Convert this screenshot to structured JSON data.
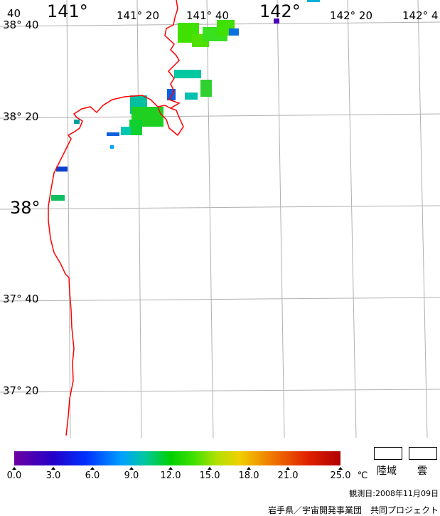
{
  "map": {
    "lon_labels": [
      "141°",
      "141° 20",
      "141° 40",
      "142°",
      "142° 20",
      "142° 4"
    ],
    "lat_labels": [
      "38° 40",
      "38° 20",
      "38°",
      "37° 40",
      "37° 20"
    ],
    "corner_fragment": "40",
    "colors": {
      "coast": "#ff0000",
      "grid": "#b0b0b0"
    }
  },
  "colorbar": {
    "tick_labels": [
      "0.0",
      "3.0",
      "6.0",
      "9.0",
      "12.0",
      "15.0",
      "18.0",
      "21.0",
      "25.0"
    ],
    "unit": "℃"
  },
  "legend": {
    "land_label": "陸域",
    "cloud_label": "雲"
  },
  "observation_date": "観測日:2008年11月09日",
  "credit": "岩手県／宇宙開発事業団　共同プロジェクト"
}
